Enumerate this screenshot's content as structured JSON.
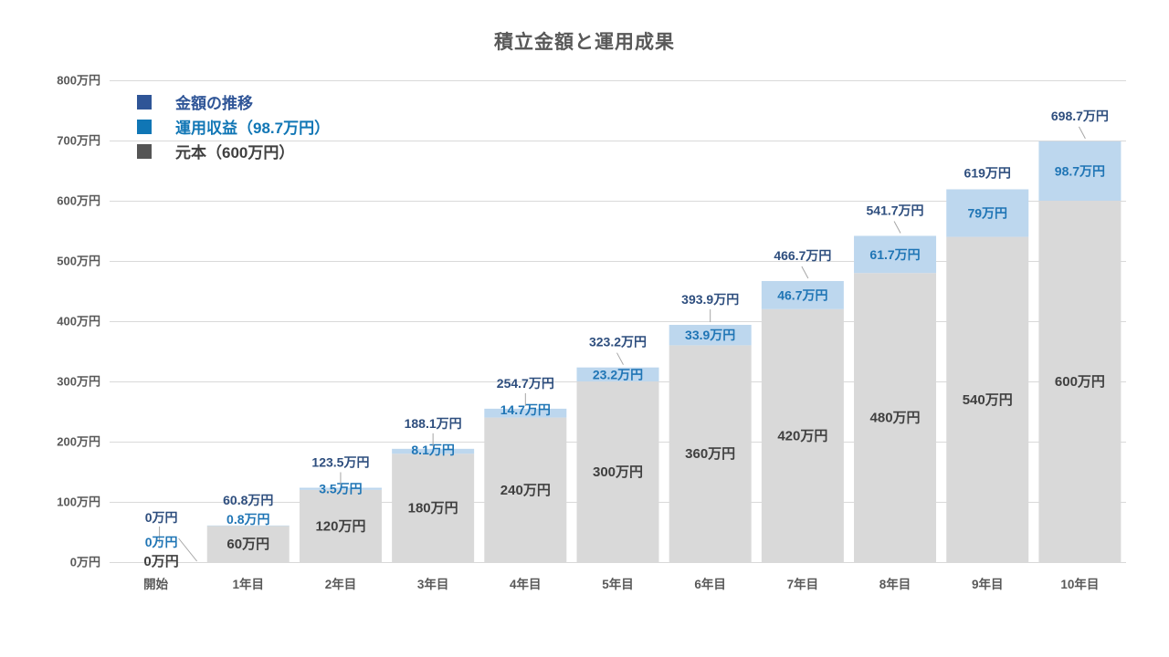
{
  "title": "積立金額と運用成果",
  "legend": {
    "items": [
      {
        "label": "金額の推移",
        "swatch_color": "#2F5597",
        "text_color": "#2F5597"
      },
      {
        "label": "運用収益（98.7万円）",
        "swatch_color": "#1076B5",
        "text_color": "#1076B5"
      },
      {
        "label": "元本（600万円）",
        "swatch_color": "#555555",
        "text_color": "#404040"
      }
    ]
  },
  "chart_data": {
    "type": "bar",
    "stacked": true,
    "title": "積立金額と運用成果",
    "categories": [
      "開始",
      "1年目",
      "2年目",
      "3年目",
      "4年目",
      "5年目",
      "6年目",
      "7年目",
      "8年目",
      "9年目",
      "10年目"
    ],
    "series": [
      {
        "name": "元本",
        "color": "#D9D9D9",
        "label_color": "#404040",
        "values": [
          0,
          60,
          120,
          180,
          240,
          300,
          360,
          420,
          480,
          540,
          600
        ],
        "labels": [
          "0万円",
          "60万円",
          "120万円",
          "180万円",
          "240万円",
          "300万円",
          "360万円",
          "420万円",
          "480万円",
          "540万円",
          "600万円"
        ]
      },
      {
        "name": "運用収益",
        "color": "#BDD7EE",
        "label_color": "#1F75B5",
        "values": [
          0,
          0.8,
          3.5,
          8.1,
          14.7,
          23.2,
          33.9,
          46.7,
          61.7,
          79,
          98.7
        ],
        "labels": [
          "0万円",
          "0.8万円",
          "3.5万円",
          "8.1万円",
          "14.7万円",
          "23.2万円",
          "33.9万円",
          "46.7万円",
          "61.7万円",
          "79万円",
          "98.7万円"
        ]
      }
    ],
    "totals": {
      "name": "金額の推移",
      "label_color": "#2E4E7E",
      "values": [
        0,
        60.8,
        123.5,
        188.1,
        254.7,
        323.2,
        393.9,
        466.7,
        541.7,
        619,
        698.7
      ],
      "labels": [
        "0万円",
        "60.8万円",
        "123.5万円",
        "188.1万円",
        "254.7万円",
        "323.2万円",
        "393.9万円",
        "466.7万円",
        "541.7万円",
        "619万円",
        "698.7万円"
      ]
    },
    "ylim": [
      0,
      800
    ],
    "ytick_step": 100,
    "yticks": [
      "0万円",
      "100万円",
      "200万円",
      "300万円",
      "400万円",
      "500万円",
      "600万円",
      "700万円",
      "800万円"
    ],
    "xlabel": "",
    "ylabel": "",
    "grid": true,
    "legend_position": "top-left",
    "axis_color": "#595959",
    "grid_color": "#D9D9D9",
    "leader_color": "#A6A6A6"
  }
}
